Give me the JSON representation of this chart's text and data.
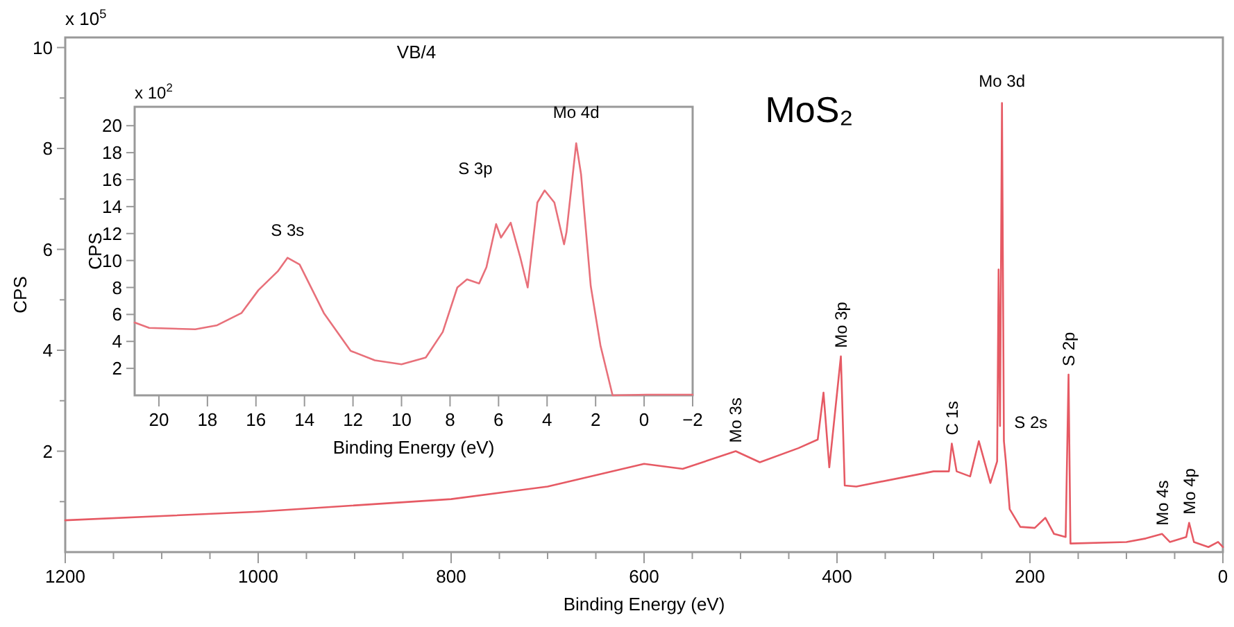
{
  "chart_data": [
    {
      "type": "line",
      "xlabel": "Binding Energy (eV)",
      "ylabel": "CPS",
      "xlim": [
        1200,
        0
      ],
      "ylim": [
        0,
        10.2
      ],
      "xticks": [
        1200,
        {
          "value": 1150,
          "label": null
        },
        1000,
        {
          "value": 1100,
          "label": null
        },
        {
          "value": 1050,
          "label": null
        },
        {
          "value": 950,
          "label": null
        },
        {
          "value": 900,
          "label": null
        },
        {
          "value": 850,
          "label": null
        },
        800,
        {
          "value": 750,
          "label": null
        },
        {
          "value": 700,
          "label": null
        },
        {
          "value": 650,
          "label": null
        },
        600,
        {
          "value": 550,
          "label": null
        },
        {
          "value": 500,
          "label": null
        },
        {
          "value": 450,
          "label": null
        },
        400,
        {
          "value": 350,
          "label": null
        },
        {
          "value": 300,
          "label": null
        },
        {
          "value": 250,
          "label": null
        },
        200,
        {
          "value": 150,
          "label": null
        },
        {
          "value": 100,
          "label": null
        },
        {
          "value": 50,
          "label": null
        },
        0
      ],
      "yticks": [
        {
          "value": 1,
          "label": null
        },
        2,
        {
          "value": 3,
          "label": null
        },
        4,
        {
          "value": 5,
          "label": null
        },
        6,
        {
          "value": 7,
          "label": null
        },
        8,
        {
          "value": 9,
          "label": null
        },
        10
      ],
      "series": [
        {
          "color": "#e65a64",
          "x": [
            1200,
            1000,
            800,
            700,
            600,
            560,
            505,
            480,
            440,
            420,
            414,
            408,
            396,
            392,
            380,
            300,
            284,
            281,
            276,
            262,
            253,
            241,
            234,
            232.5,
            231,
            229,
            227,
            225,
            221,
            210,
            195,
            184,
            175,
            163,
            160,
            158,
            100,
            80,
            63,
            55,
            38,
            35,
            30,
            15,
            5,
            0
          ],
          "values": [
            0.63,
            0.8,
            1.05,
            1.3,
            1.75,
            1.65,
            2.0,
            1.78,
            2.06,
            2.23,
            3.16,
            1.68,
            3.88,
            1.32,
            1.3,
            1.6,
            1.6,
            2.15,
            1.6,
            1.5,
            2.2,
            1.37,
            1.8,
            5.6,
            2.5,
            8.9,
            2.2,
            1.8,
            0.85,
            0.5,
            0.48,
            0.68,
            0.36,
            0.3,
            3.52,
            0.17,
            0.2,
            0.27,
            0.36,
            0.2,
            0.3,
            0.58,
            0.2,
            0.1,
            0.2,
            0.1
          ]
        }
      ],
      "annotations": [
        "x 10$^{5}$",
        "VB/4",
        "MoS₂",
        {
          "text": "Mo 3d",
          "x": 229,
          "y": 8.9
        },
        {
          "text": "S 2s",
          "x": 225,
          "y": 1.8
        },
        {
          "text": "Mo 3s",
          "x": 505,
          "y": 2.0
        },
        {
          "text": "Mo 3p",
          "x": 396,
          "y": 3.88
        },
        {
          "text": "C 1s",
          "x": 281,
          "y": 2.15
        },
        {
          "text": "S 2p",
          "x": 160,
          "y": 3.52
        },
        {
          "text": "Mo 4s",
          "x": 63,
          "y": 0.36
        },
        {
          "text": "Mo 4p",
          "x": 35,
          "y": 0.58
        }
      ]
    },
    {
      "type": "line",
      "xlabel": "Binding Energy (eV)",
      "ylabel": "CPS",
      "xlim": [
        21,
        -2
      ],
      "ylim": [
        0,
        21.4
      ],
      "xticks": [
        20,
        18,
        16,
        14,
        12,
        10,
        8,
        6,
        4,
        2,
        0,
        {
          "value": -2,
          "label": "−2"
        }
      ],
      "yticks": [
        2,
        4,
        6,
        8,
        10,
        12,
        14,
        16,
        18,
        20
      ],
      "series": [
        {
          "color": "#e8707a",
          "x": [
            21,
            20.4,
            18.5,
            17.6,
            16.6,
            15.9,
            15.1,
            14.7,
            14.2,
            13.2,
            12.1,
            11.1,
            10,
            9.0,
            8.3,
            7.7,
            7.3,
            6.8,
            6.5,
            6.1,
            5.9,
            5.5,
            5.1,
            4.8,
            4.4,
            4.1,
            3.7,
            3.3,
            3.2,
            2.8,
            2.6,
            2.2,
            1.8,
            1.3,
            -0.1,
            -2
          ],
          "values": [
            5.4,
            5.0,
            4.9,
            5.2,
            6.1,
            7.8,
            9.2,
            10.2,
            9.7,
            6.1,
            3.3,
            2.6,
            2.3,
            2.8,
            4.7,
            8.0,
            8.6,
            8.3,
            9.5,
            12.7,
            11.7,
            12.8,
            10.2,
            8.0,
            14.3,
            15.2,
            14.3,
            11.2,
            12.1,
            18.7,
            16.4,
            8.1,
            3.7,
            0,
            0.05,
            0.05
          ]
        }
      ],
      "annotations": [
        "x 10$^{2}$",
        {
          "text": "S 3s",
          "x": 14.7,
          "y": 10.2
        },
        {
          "text": "S 3p",
          "x": 6.1,
          "y": 12.7
        },
        {
          "text": "Mo 4d",
          "x": 2.8,
          "y": 18.7
        }
      ]
    }
  ]
}
